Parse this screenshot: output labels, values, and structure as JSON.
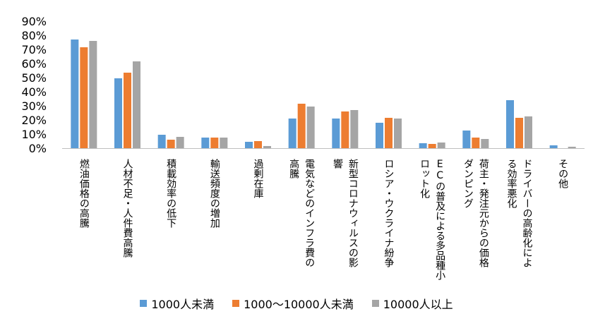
{
  "chart_data": {
    "type": "bar",
    "categories": [
      "燃油価格の高騰",
      "人材不足・人件費高騰",
      "積載効率の低下",
      "輸送頻度の増加",
      "過剰在庫",
      "電気などのインフラ費の高騰",
      "新型コロナウィルスの影響",
      "ロシア・ウクライナ紛争",
      "ECの普及による多品種小ロット化",
      "荷主・発注元からの価格ダンピング",
      "ドライバーの高齢化による効率悪化",
      "その他"
    ],
    "category_lines": [
      [
        "燃油価格の高騰"
      ],
      [
        "人材不足・人件費高騰"
      ],
      [
        "積載効率の低下"
      ],
      [
        "輸送頻度の増加"
      ],
      [
        "過剰在庫"
      ],
      [
        "電気などのインフラ費の",
        "高騰"
      ],
      [
        "新型コロナウィルスの影",
        "響"
      ],
      [
        "ロシア・ウクライナ紛争"
      ],
      [
        "ECの普及による多品種小",
        "ロット化"
      ],
      [
        "荷主・発注元からの価格",
        "ダンピング"
      ],
      [
        "ドライバーの高齢化によ",
        "る効率悪化"
      ],
      [
        "その他"
      ]
    ],
    "series": [
      {
        "name": "1000人未満",
        "color": "#5B9BD5",
        "values": [
          77,
          49.5,
          9.5,
          7.5,
          4.5,
          21,
          21,
          18,
          3.5,
          12.5,
          34,
          2
        ]
      },
      {
        "name": "1000～10000人未満",
        "color": "#ED7D31",
        "values": [
          71.5,
          53.5,
          6,
          7.5,
          5,
          31.5,
          26,
          21.5,
          3,
          7.5,
          21.5,
          0
        ]
      },
      {
        "name": "10000人以上",
        "color": "#A5A5A5",
        "values": [
          76,
          61.5,
          8,
          7.5,
          1.5,
          29.5,
          27,
          21,
          4,
          6.5,
          22.5,
          1
        ]
      }
    ],
    "y_ticks": [
      "0%",
      "10%",
      "20%",
      "30%",
      "40%",
      "50%",
      "60%",
      "70%",
      "80%",
      "90%"
    ],
    "ylim": [
      0,
      90
    ],
    "legend_position": "bottom",
    "grid": false
  }
}
